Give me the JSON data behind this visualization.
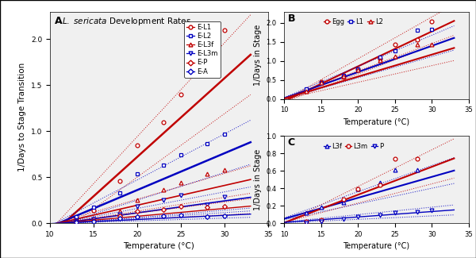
{
  "title_A": "L. sericata Development Rates",
  "xlabel": "Temperature (°C)",
  "ylabel_A": "1/Days to Stage Transition",
  "ylabel_BC": "1/Days in Stage",
  "temps_data": [
    13,
    15,
    18,
    20,
    23,
    25,
    28,
    30
  ],
  "series": {
    "E_L1": {
      "color": "#c00000",
      "marker": "o",
      "markersize": 3.5,
      "linewidth": 1.8,
      "label": "E-L1",
      "data_y": [
        0.06,
        0.14,
        0.46,
        0.85,
        1.1,
        1.4,
        2.03,
        2.1
      ],
      "fit_slope": 0.0855,
      "fit_intercept": -0.99,
      "ci_slope_hi": 0.102,
      "ci_intercept_hi": -1.1,
      "ci_slope_lo": 0.069,
      "ci_intercept_lo": -0.88
    },
    "E_L2": {
      "color": "#0000c0",
      "marker": "s",
      "markersize": 3.5,
      "linewidth": 1.8,
      "label": "E-L2",
      "data_y": [
        0.07,
        0.17,
        0.33,
        0.54,
        0.63,
        0.74,
        0.86,
        0.97
      ],
      "fit_slope": 0.04,
      "fit_intercept": -0.44,
      "ci_slope_hi": 0.05,
      "ci_intercept_hi": -0.53,
      "ci_slope_lo": 0.03,
      "ci_intercept_lo": -0.35
    },
    "E_L3f": {
      "color": "#c00000",
      "marker": "^",
      "markersize": 3.5,
      "linewidth": 1.2,
      "label": "E-L3f",
      "data_y": [
        0.02,
        0.05,
        0.13,
        0.25,
        0.36,
        0.44,
        0.54,
        0.58
      ],
      "fit_slope": 0.0215,
      "fit_intercept": -0.235,
      "ci_slope_hi": 0.028,
      "ci_intercept_hi": -0.3,
      "ci_slope_lo": 0.015,
      "ci_intercept_lo": -0.17
    },
    "E_L3m": {
      "color": "#0000c0",
      "marker": "v",
      "markersize": 3.5,
      "linewidth": 1.2,
      "label": "E-L3m",
      "data_y": [
        0.02,
        0.04,
        0.1,
        0.18,
        0.25,
        0.3,
        0.2,
        0.29
      ],
      "fit_slope": 0.013,
      "fit_intercept": -0.148,
      "ci_slope_hi": 0.018,
      "ci_intercept_hi": -0.2,
      "ci_slope_lo": 0.008,
      "ci_intercept_lo": -0.1
    },
    "E_P": {
      "color": "#c00000",
      "marker": "D",
      "markersize": 3.0,
      "linewidth": 1.0,
      "label": "E-P",
      "data_y": [
        0.01,
        0.03,
        0.08,
        0.13,
        0.15,
        0.18,
        0.17,
        0.18
      ],
      "fit_slope": 0.0085,
      "fit_intercept": -0.095,
      "ci_slope_hi": 0.012,
      "ci_intercept_hi": -0.13,
      "ci_slope_lo": 0.005,
      "ci_intercept_lo": -0.06
    },
    "E_A": {
      "color": "#0000c0",
      "marker": "D",
      "markersize": 3.0,
      "linewidth": 1.0,
      "label": "E-A",
      "data_y": [
        0.01,
        0.02,
        0.05,
        0.07,
        0.08,
        0.09,
        0.07,
        0.08
      ],
      "fit_slope": 0.0045,
      "fit_intercept": -0.05,
      "ci_slope_hi": 0.006,
      "ci_intercept_hi": -0.065,
      "ci_slope_lo": 0.003,
      "ci_intercept_lo": -0.035
    }
  },
  "series_B": {
    "Egg": {
      "color": "#c00000",
      "marker": "o",
      "markersize": 3.5,
      "linewidth": 1.5,
      "label": "Egg",
      "data_y": [
        0.22,
        0.46,
        0.57,
        0.79,
        1.05,
        1.43,
        1.57,
        2.05
      ],
      "fit_slope": 0.092,
      "fit_intercept": -0.98,
      "ci_slope_hi": 0.11,
      "ci_intercept_hi": -1.14,
      "ci_slope_lo": 0.074,
      "ci_intercept_lo": -0.82
    },
    "L1": {
      "color": "#0000c0",
      "marker": "s",
      "markersize": 3.5,
      "linewidth": 1.5,
      "label": "L1",
      "data_y": [
        0.26,
        0.44,
        0.62,
        0.79,
        1.1,
        1.27,
        1.82,
        1.83
      ],
      "fit_slope": 0.069,
      "fit_intercept": -0.67,
      "ci_slope_hi": 0.082,
      "ci_intercept_hi": -0.78,
      "ci_slope_lo": 0.056,
      "ci_intercept_lo": -0.56
    },
    "L2": {
      "color": "#c00000",
      "marker": "^",
      "markersize": 3.5,
      "linewidth": 1.5,
      "label": "L2",
      "data_y": [
        0.21,
        0.43,
        0.61,
        0.76,
        1.01,
        1.12,
        1.44,
        1.43
      ],
      "fit_slope": 0.058,
      "fit_intercept": -0.57,
      "ci_slope_hi": 0.072,
      "ci_intercept_hi": -0.7,
      "ci_slope_lo": 0.044,
      "ci_intercept_lo": -0.44
    }
  },
  "series_C": {
    "L3f": {
      "color": "#0000c0",
      "marker": "^",
      "markersize": 3.5,
      "linewidth": 1.5,
      "label": "L3f",
      "data_y": [
        0.12,
        0.18,
        0.24,
        0.39,
        0.46,
        0.61,
        0.61,
        null
      ],
      "fit_slope": 0.024,
      "fit_intercept": -0.19,
      "ci_slope_hi": 0.03,
      "ci_intercept_hi": -0.24,
      "ci_slope_lo": 0.018,
      "ci_intercept_lo": -0.14
    },
    "L3m": {
      "color": "#c00000",
      "marker": "o",
      "markersize": 3.5,
      "linewidth": 1.5,
      "label": "L3m",
      "data_y": [
        0.02,
        0.04,
        0.27,
        0.39,
        0.44,
        0.74,
        0.74,
        null
      ],
      "fit_slope": 0.032,
      "fit_intercept": -0.315,
      "ci_slope_hi": 0.042,
      "ci_intercept_hi": -0.42,
      "ci_slope_lo": 0.022,
      "ci_intercept_lo": -0.21
    },
    "P": {
      "color": "#0000c0",
      "marker": "v",
      "markersize": 3.5,
      "linewidth": 1.0,
      "label": "P",
      "data_y": [
        0.0,
        0.02,
        0.05,
        0.07,
        0.09,
        0.12,
        0.13,
        0.15
      ],
      "fit_slope": 0.0062,
      "fit_intercept": -0.053,
      "ci_slope_hi": 0.0085,
      "ci_intercept_hi": -0.072,
      "ci_slope_lo": 0.0039,
      "ci_intercept_lo": -0.034
    }
  },
  "xlim_A": [
    10,
    33
  ],
  "ylim_A": [
    0.0,
    2.3
  ],
  "xlim_BC": [
    10,
    33
  ],
  "ylim_B": [
    0.0,
    2.3
  ],
  "ylim_C": [
    0.0,
    1.0
  ],
  "xticks_A": [
    10,
    15,
    20,
    25,
    30,
    35
  ],
  "xticks_BC": [
    10,
    15,
    20,
    25,
    30,
    35
  ],
  "yticks_A": [
    0.0,
    0.5,
    1.0,
    1.5,
    2.0
  ],
  "yticks_B": [
    0.0,
    0.5,
    1.0,
    1.5,
    2.0
  ],
  "yticks_C": [
    0.0,
    0.2,
    0.4,
    0.6,
    0.8,
    1.0
  ],
  "background": "#f0f0f0"
}
